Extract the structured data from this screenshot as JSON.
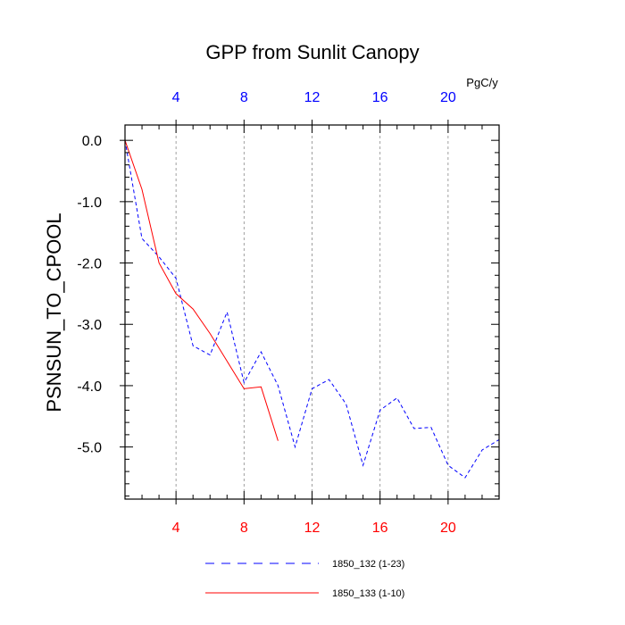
{
  "chart_data": {
    "type": "line",
    "title": "GPP from Sunlit Canopy",
    "ylabel": "PSNSUN_TO_CPOOL",
    "units": "PgC/y",
    "xlim": [
      1,
      23
    ],
    "ylim": [
      -5.85,
      0.25
    ],
    "x_ticks": [
      4,
      8,
      12,
      16,
      20
    ],
    "y_ticks": [
      0,
      -1,
      -2,
      -3,
      -4,
      -5
    ],
    "y_tick_labels": [
      "0.0",
      "-1.0",
      "-2.0",
      "-3.0",
      "-4.0",
      "-5.0"
    ],
    "grid": "vertical dashed lines at x ticks",
    "legend_placement": "bottom",
    "series": [
      {
        "name": "1850_132 (1-23)",
        "color": "#0000ff",
        "style": "dashed",
        "x": [
          1,
          2,
          3,
          4,
          5,
          6,
          7,
          8,
          9,
          10,
          11,
          12,
          13,
          14,
          15,
          16,
          17,
          18,
          19,
          20,
          21,
          22,
          23
        ],
        "values": [
          0.0,
          -1.6,
          -1.9,
          -2.25,
          -3.35,
          -3.5,
          -2.8,
          -3.95,
          -3.45,
          -4.0,
          -5.0,
          -4.05,
          -3.9,
          -4.3,
          -5.3,
          -4.4,
          -4.2,
          -4.7,
          -4.68,
          -5.3,
          -5.5,
          -5.05,
          -4.88
        ]
      },
      {
        "name": "1850_133 (1-10)",
        "color": "#ff0000",
        "style": "solid",
        "x": [
          1,
          2,
          3,
          4,
          5,
          6,
          7,
          8,
          9,
          10
        ],
        "values": [
          0.0,
          -0.8,
          -2.0,
          -2.5,
          -2.75,
          -3.15,
          -3.6,
          -4.05,
          -4.02,
          -4.9
        ]
      }
    ]
  },
  "axis_colors": {
    "bottom": "#ff0000",
    "top": "#0000ff",
    "left": "#000000"
  }
}
